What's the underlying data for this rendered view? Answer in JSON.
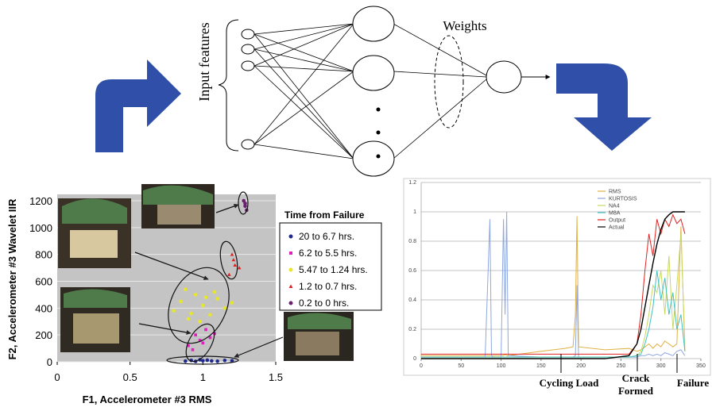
{
  "diagram": {
    "input_label": "Input features",
    "weights_label": "Weights"
  },
  "chart_data": [
    {
      "type": "scatter",
      "x_label": "F1, Accelerometer #3 RMS",
      "y_label": "F2, Accelerometer #3 Wavelet IIR",
      "legend_title": "Time from Failure",
      "xlim": [
        0,
        1.5
      ],
      "xticks": [
        0,
        0.5,
        1,
        1.5
      ],
      "ylim": [
        0,
        1200
      ],
      "yticks": [
        0,
        200,
        400,
        600,
        800,
        1000,
        1200
      ],
      "grid": true,
      "series": [
        {
          "name": "20 to 6.7 hrs.",
          "color": "#1f2a8f",
          "marker": "circle",
          "x": [
            0.88,
            0.92,
            0.95,
            1.0,
            1.03,
            1.06,
            1.1,
            1.15,
            0.98,
            1.2
          ],
          "values": [
            5,
            10,
            3,
            8,
            12,
            6,
            4,
            10,
            15,
            8
          ]
        },
        {
          "name": "6.2 to 5.5 hrs.",
          "color": "#e020c0",
          "marker": "square",
          "x": [
            0.9,
            0.95,
            0.98,
            1.02,
            1.05,
            0.93,
            1.0,
            1.08
          ],
          "values": [
            120,
            200,
            160,
            240,
            180,
            90,
            140,
            210
          ]
        },
        {
          "name": "5.47 to 1.24 hrs.",
          "color": "#e6e62a",
          "marker": "circle",
          "x": [
            0.8,
            0.85,
            0.9,
            0.95,
            1.0,
            1.05,
            1.1,
            1.15,
            0.88,
            0.98,
            1.08,
            1.2,
            0.92,
            1.02
          ],
          "values": [
            380,
            450,
            320,
            500,
            420,
            350,
            470,
            400,
            540,
            300,
            520,
            440,
            360,
            480
          ]
        },
        {
          "name": "1.2 to 0.7 hrs.",
          "color": "#e02020",
          "marker": "triangle",
          "x": [
            1.2,
            1.22,
            1.18,
            1.25,
            1.21
          ],
          "values": [
            800,
            720,
            650,
            700,
            760
          ]
        },
        {
          "name": "0.2 to 0 hrs.",
          "color": "#6a1f6f",
          "marker": "circle",
          "x": [
            1.28,
            1.29,
            1.3,
            1.29
          ],
          "values": [
            1200,
            1160,
            1130,
            1180
          ]
        }
      ]
    },
    {
      "type": "line",
      "xlim": [
        0,
        350
      ],
      "xticks": [
        0,
        50,
        100,
        150,
        200,
        250,
        300,
        350
      ],
      "ylim": [
        0,
        1.2
      ],
      "yticks": [
        0,
        0.2,
        0.4,
        0.6,
        0.8,
        1,
        1.2
      ],
      "grid": true,
      "annotations": [
        "Cycling Load",
        "Crack",
        "Formed",
        "Failure"
      ],
      "x": [
        0,
        80,
        86,
        88,
        90,
        100,
        103,
        105,
        107,
        109,
        150,
        180,
        190,
        193,
        195,
        197,
        230,
        260,
        270,
        275,
        280,
        285,
        290,
        295,
        300,
        305,
        310,
        315,
        320,
        325,
        330
      ],
      "series": [
        {
          "name": "RMS",
          "color": "#e0b040",
          "values": [
            0.02,
            0.02,
            0.02,
            0.02,
            0.02,
            0.02,
            0.02,
            0.03,
            0.02,
            0.02,
            0.05,
            0.07,
            0.08,
            0.3,
            0.97,
            0.08,
            0.06,
            0.07,
            0.05,
            0.06,
            0.08,
            0.1,
            0.07,
            0.1,
            0.08,
            0.12,
            0.1,
            0.08,
            0.1,
            0.9,
            0.05
          ]
        },
        {
          "name": "KURTOSIS",
          "color": "#8fa8e0",
          "values": [
            0.01,
            0.01,
            0.95,
            0.02,
            0.01,
            0.01,
            0.95,
            0.3,
            1.0,
            0.02,
            0.01,
            0.01,
            0.01,
            0.02,
            0.5,
            0.01,
            0.01,
            0.01,
            0.01,
            0.02,
            0.02,
            0.03,
            0.02,
            0.03,
            0.02,
            0.04,
            0.03,
            0.02,
            0.05,
            0.06,
            0.02
          ]
        },
        {
          "name": "NA4",
          "color": "#c8d860",
          "values": [
            0.01,
            0.01,
            0.01,
            0.01,
            0.01,
            0.01,
            0.01,
            0.01,
            0.01,
            0.01,
            0.01,
            0.01,
            0.01,
            0.01,
            0.01,
            0.01,
            0.01,
            0.01,
            0.02,
            0.05,
            0.15,
            0.3,
            0.5,
            0.45,
            0.6,
            0.3,
            0.7,
            0.2,
            0.5,
            0.85,
            0.1
          ]
        },
        {
          "name": "M8A",
          "color": "#40c0c0",
          "values": [
            0.01,
            0.01,
            0.01,
            0.01,
            0.01,
            0.01,
            0.01,
            0.01,
            0.01,
            0.01,
            0.01,
            0.01,
            0.01,
            0.01,
            0.01,
            0.01,
            0.01,
            0.01,
            0.02,
            0.03,
            0.1,
            0.2,
            0.35,
            0.6,
            0.4,
            0.55,
            0.3,
            0.45,
            0.2,
            0.3,
            0.05
          ]
        },
        {
          "name": "Output",
          "color": "#e02020",
          "values": [
            0.03,
            0.03,
            0.03,
            0.03,
            0.03,
            0.03,
            0.03,
            0.03,
            0.03,
            0.03,
            0.03,
            0.03,
            0.03,
            0.03,
            0.03,
            0.03,
            0.03,
            0.03,
            0.1,
            0.3,
            0.6,
            0.85,
            0.7,
            0.95,
            0.85,
            0.95,
            0.9,
            0.98,
            0.92,
            0.95,
            0.85
          ]
        },
        {
          "name": "Actual",
          "color": "#000000",
          "values": [
            0,
            0,
            0,
            0,
            0,
            0,
            0,
            0,
            0,
            0,
            0,
            0,
            0,
            0,
            0,
            0,
            0,
            0.02,
            0.1,
            0.2,
            0.35,
            0.5,
            0.65,
            0.78,
            0.88,
            0.95,
            0.98,
            1,
            1,
            1,
            1
          ]
        }
      ]
    }
  ]
}
